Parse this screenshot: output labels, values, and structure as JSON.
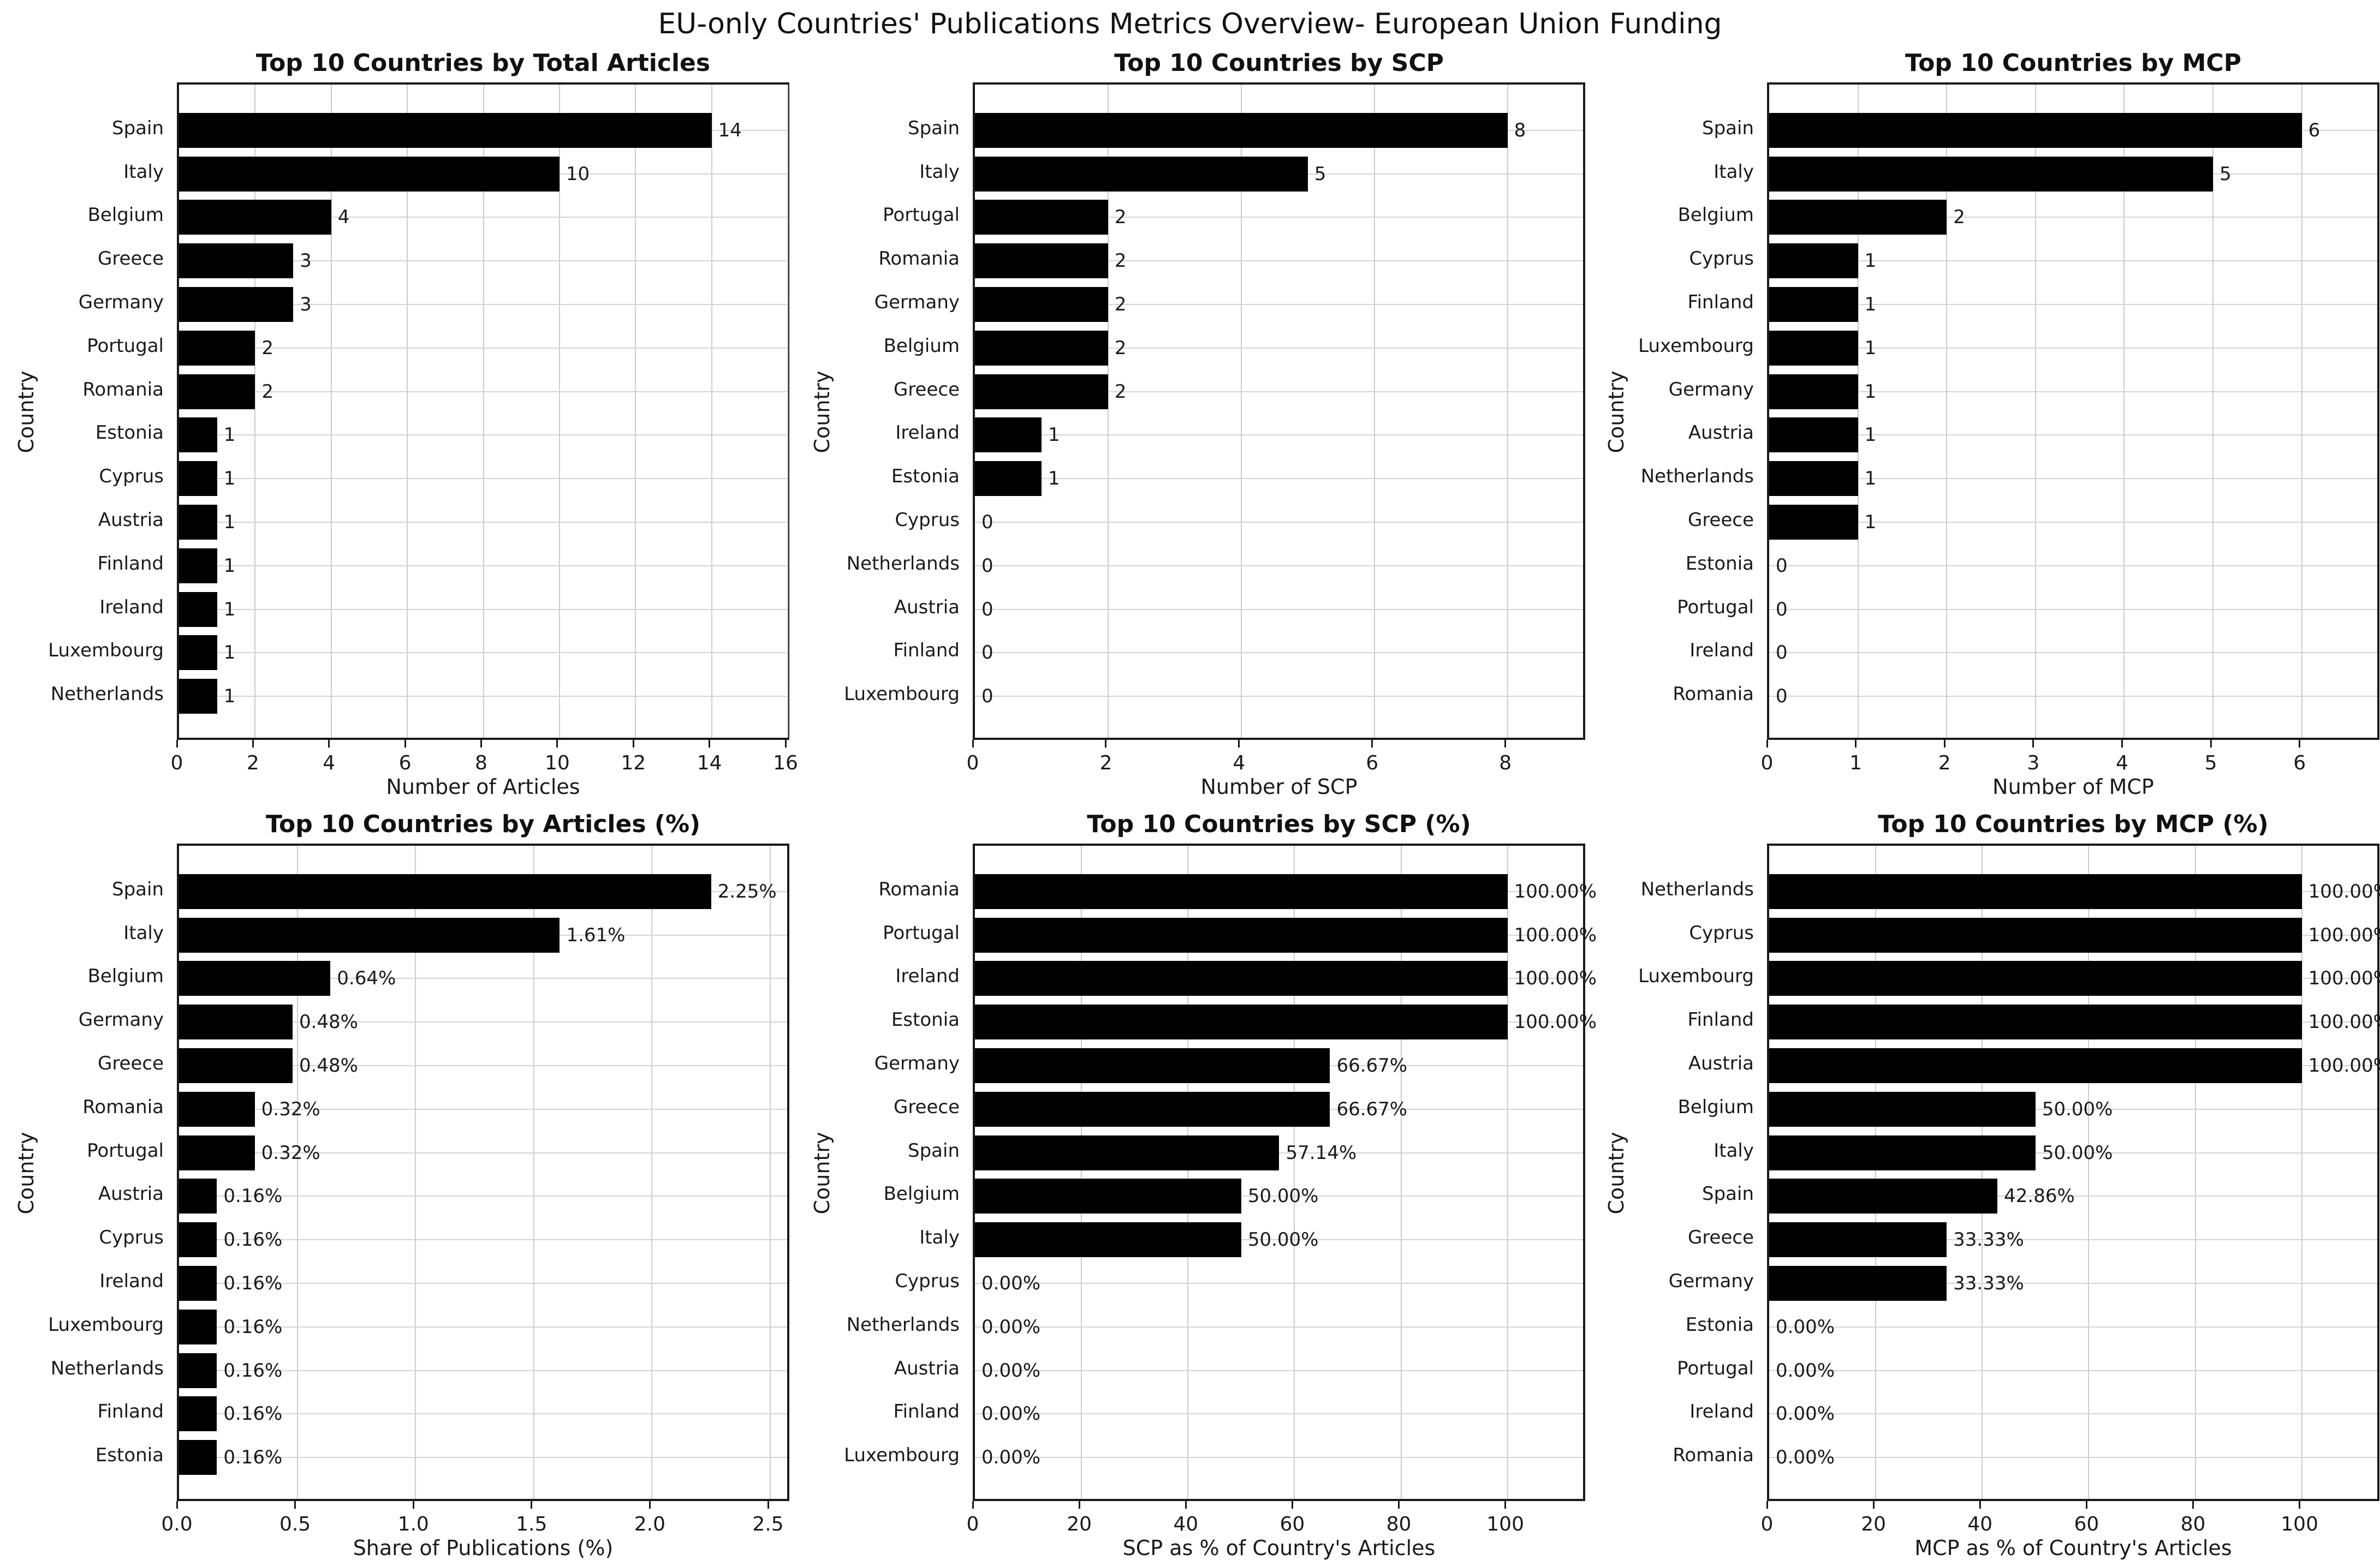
{
  "title": "EU-only Countries' Publications Metrics Overview- European Union Funding",
  "colors": {
    "bar": "#000000",
    "grid": "#cccccc",
    "text": "#1a1a1a",
    "background": "#ffffff"
  },
  "chart_data": [
    {
      "type": "bar",
      "orientation": "horizontal",
      "title": "Top 10 Countries by Total Articles",
      "xlabel": "Number of Articles",
      "ylabel": "Country",
      "categories": [
        "Spain",
        "Italy",
        "Belgium",
        "Greece",
        "Germany",
        "Portugal",
        "Romania",
        "Estonia",
        "Cyprus",
        "Austria",
        "Finland",
        "Ireland",
        "Luxembourg",
        "Netherlands"
      ],
      "values": [
        14,
        10,
        4,
        3,
        3,
        2,
        2,
        1,
        1,
        1,
        1,
        1,
        1,
        1
      ],
      "value_labels": [
        "14",
        "10",
        "4",
        "3",
        "3",
        "2",
        "2",
        "1",
        "1",
        "1",
        "1",
        "1",
        "1",
        "1"
      ],
      "xticks": [
        0,
        2,
        4,
        6,
        8,
        10,
        12,
        14,
        16
      ],
      "xtick_labels": [
        "0",
        "2",
        "4",
        "6",
        "8",
        "10",
        "12",
        "14",
        "16"
      ],
      "xlim": [
        0,
        16.1
      ],
      "grid": true
    },
    {
      "type": "bar",
      "orientation": "horizontal",
      "title": "Top 10 Countries by SCP",
      "xlabel": "Number of SCP",
      "ylabel": "Country",
      "categories": [
        "Spain",
        "Italy",
        "Portugal",
        "Romania",
        "Germany",
        "Belgium",
        "Greece",
        "Ireland",
        "Estonia",
        "Cyprus",
        "Netherlands",
        "Austria",
        "Finland",
        "Luxembourg"
      ],
      "values": [
        8,
        5,
        2,
        2,
        2,
        2,
        2,
        1,
        1,
        0,
        0,
        0,
        0,
        0
      ],
      "value_labels": [
        "8",
        "5",
        "2",
        "2",
        "2",
        "2",
        "2",
        "1",
        "1",
        "0",
        "0",
        "0",
        "0",
        "0"
      ],
      "xticks": [
        0,
        2,
        4,
        6,
        8
      ],
      "xtick_labels": [
        "0",
        "2",
        "4",
        "6",
        "8"
      ],
      "xlim": [
        0,
        9.2
      ],
      "grid": true
    },
    {
      "type": "bar",
      "orientation": "horizontal",
      "title": "Top 10 Countries by MCP",
      "xlabel": "Number of MCP",
      "ylabel": "Country",
      "categories": [
        "Spain",
        "Italy",
        "Belgium",
        "Cyprus",
        "Finland",
        "Luxembourg",
        "Germany",
        "Austria",
        "Netherlands",
        "Greece",
        "Estonia",
        "Portugal",
        "Ireland",
        "Romania"
      ],
      "values": [
        6,
        5,
        2,
        1,
        1,
        1,
        1,
        1,
        1,
        1,
        0,
        0,
        0,
        0
      ],
      "value_labels": [
        "6",
        "5",
        "2",
        "1",
        "1",
        "1",
        "1",
        "1",
        "1",
        "1",
        "0",
        "0",
        "0",
        "0"
      ],
      "xticks": [
        0,
        1,
        2,
        3,
        4,
        5,
        6
      ],
      "xtick_labels": [
        "0",
        "1",
        "2",
        "3",
        "4",
        "5",
        "6"
      ],
      "xlim": [
        0,
        6.9
      ],
      "grid": true
    },
    {
      "type": "bar",
      "orientation": "horizontal",
      "title": "Top 10 Countries by Articles (%)",
      "xlabel": "Share of Publications (%)",
      "ylabel": "Country",
      "categories": [
        "Spain",
        "Italy",
        "Belgium",
        "Germany",
        "Greece",
        "Romania",
        "Portugal",
        "Austria",
        "Cyprus",
        "Ireland",
        "Luxembourg",
        "Netherlands",
        "Finland",
        "Estonia"
      ],
      "values": [
        2.25,
        1.61,
        0.64,
        0.48,
        0.48,
        0.32,
        0.32,
        0.16,
        0.16,
        0.16,
        0.16,
        0.16,
        0.16,
        0.16
      ],
      "value_labels": [
        "2.25%",
        "1.61%",
        "0.64%",
        "0.48%",
        "0.48%",
        "0.32%",
        "0.32%",
        "0.16%",
        "0.16%",
        "0.16%",
        "0.16%",
        "0.16%",
        "0.16%",
        "0.16%"
      ],
      "xticks": [
        0,
        0.5,
        1.0,
        1.5,
        2.0,
        2.5
      ],
      "xtick_labels": [
        "0.0",
        "0.5",
        "1.0",
        "1.5",
        "2.0",
        "2.5"
      ],
      "xlim": [
        0,
        2.59
      ],
      "grid": true
    },
    {
      "type": "bar",
      "orientation": "horizontal",
      "title": "Top 10 Countries by SCP (%)",
      "xlabel": "SCP as % of Country's Articles",
      "ylabel": "Country",
      "categories": [
        "Romania",
        "Portugal",
        "Ireland",
        "Estonia",
        "Germany",
        "Greece",
        "Spain",
        "Belgium",
        "Italy",
        "Cyprus",
        "Netherlands",
        "Austria",
        "Finland",
        "Luxembourg"
      ],
      "values": [
        100,
        100,
        100,
        100,
        66.67,
        66.67,
        57.14,
        50,
        50,
        0,
        0,
        0,
        0,
        0
      ],
      "value_labels": [
        "100.00%",
        "100.00%",
        "100.00%",
        "100.00%",
        "66.67%",
        "66.67%",
        "57.14%",
        "50.00%",
        "50.00%",
        "0.00%",
        "0.00%",
        "0.00%",
        "0.00%",
        "0.00%"
      ],
      "xticks": [
        0,
        20,
        40,
        60,
        80,
        100
      ],
      "xtick_labels": [
        "0",
        "20",
        "40",
        "60",
        "80",
        "100"
      ],
      "xlim": [
        0,
        115
      ],
      "grid": true
    },
    {
      "type": "bar",
      "orientation": "horizontal",
      "title": "Top 10 Countries by MCP (%)",
      "xlabel": "MCP as % of Country's Articles",
      "ylabel": "Country",
      "categories": [
        "Netherlands",
        "Cyprus",
        "Luxembourg",
        "Finland",
        "Austria",
        "Belgium",
        "Italy",
        "Spain",
        "Greece",
        "Germany",
        "Estonia",
        "Portugal",
        "Ireland",
        "Romania"
      ],
      "values": [
        100,
        100,
        100,
        100,
        100,
        50,
        50,
        42.86,
        33.33,
        33.33,
        0,
        0,
        0,
        0
      ],
      "value_labels": [
        "100.00%",
        "100.00%",
        "100.00%",
        "100.00%",
        "100.00%",
        "50.00%",
        "50.00%",
        "42.86%",
        "33.33%",
        "33.33%",
        "0.00%",
        "0.00%",
        "0.00%",
        "0.00%"
      ],
      "xticks": [
        0,
        20,
        40,
        60,
        80,
        100
      ],
      "xtick_labels": [
        "0",
        "20",
        "40",
        "60",
        "80",
        "100"
      ],
      "xlim": [
        0,
        115
      ],
      "grid": true
    }
  ]
}
